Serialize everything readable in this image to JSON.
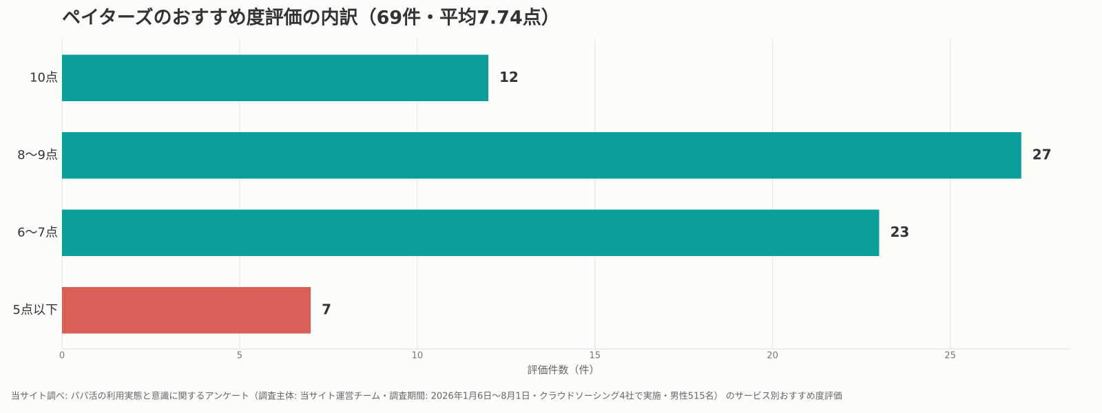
{
  "chart_data": {
    "type": "bar",
    "orientation": "horizontal",
    "title": "ペイターズのおすすめ度評価の内訳（69件・平均7.74点）",
    "categories": [
      "10点",
      "8〜9点",
      "6〜7点",
      "5点以下"
    ],
    "values": [
      12,
      27,
      23,
      7
    ],
    "colors": [
      "#0a9f9b",
      "#0a9f9b",
      "#0a9f9b",
      "#d95f57"
    ],
    "xlabel": "評価件数（件）",
    "xlim": [
      0,
      28.4
    ],
    "xticks": [
      0,
      5,
      10,
      15,
      20,
      25
    ],
    "grid": true,
    "footnote": "当サイト調べ: パパ活の利用実態と意識に関するアンケート（調査主体: 当サイト運営チーム・調査期間: 2026年1月6日〜8月1日・クラウドソーシング4社で実施・男性515名） のサービス別おすすめ度評価"
  }
}
